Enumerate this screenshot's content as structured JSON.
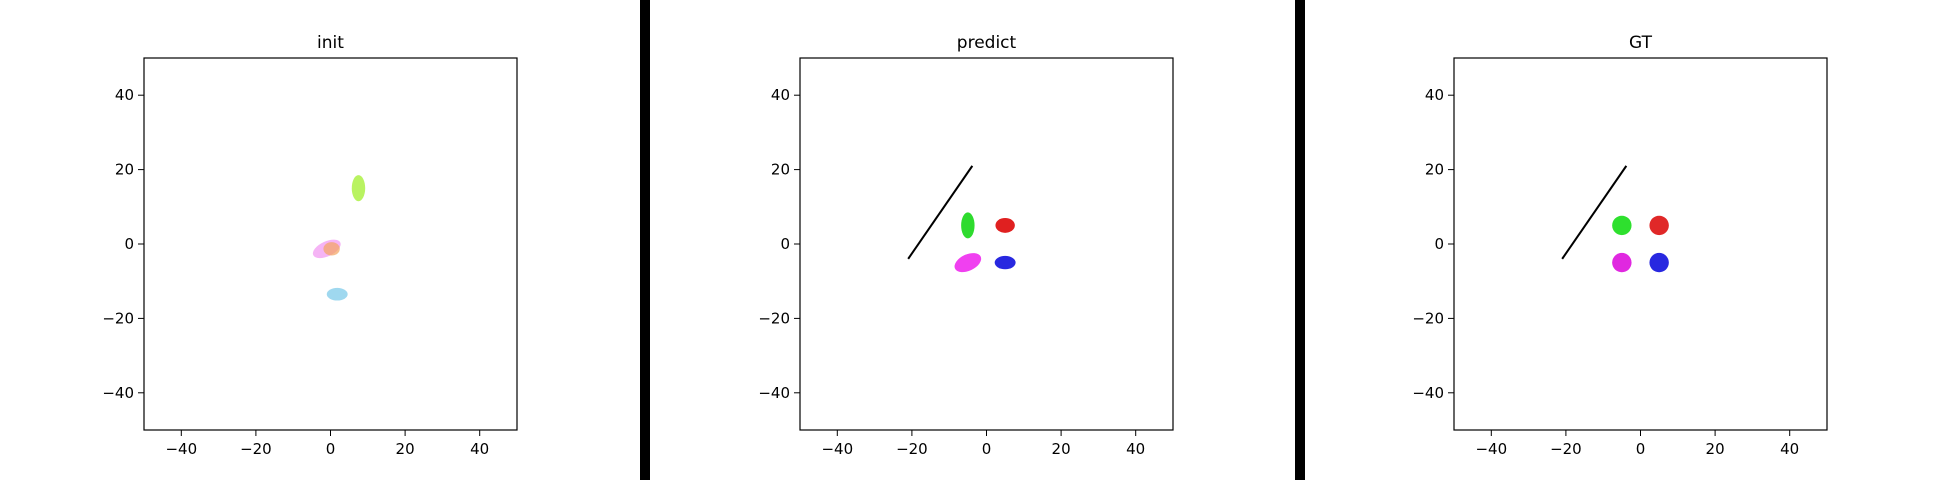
{
  "chart_data": [
    {
      "type": "scatter",
      "title": "init",
      "xlabel": "",
      "ylabel": "",
      "xlim": [
        -50,
        50
      ],
      "ylim": [
        -50,
        50
      ],
      "xticks": [
        -40,
        -20,
        0,
        20,
        40
      ],
      "yticks": [
        -40,
        -20,
        0,
        20,
        40
      ],
      "grid": false,
      "segments": [],
      "ellipses": [
        {
          "cx": 7.5,
          "cy": 15,
          "rx": 1.8,
          "ry": 3.5,
          "angle": 0,
          "color": "#a8f03a",
          "opacity": 0.8
        },
        {
          "cx": -1,
          "cy": -1.3,
          "rx": 4,
          "ry": 2,
          "angle": 25,
          "color": "#ee82ee",
          "opacity": 0.6
        },
        {
          "cx": 0.3,
          "cy": -1.3,
          "rx": 2.2,
          "ry": 1.8,
          "angle": 0,
          "color": "#f4a460",
          "opacity": 0.7
        },
        {
          "cx": 1.8,
          "cy": -13.5,
          "rx": 2.8,
          "ry": 1.7,
          "angle": 0,
          "color": "#87ceeb",
          "opacity": 0.8
        }
      ]
    },
    {
      "type": "scatter",
      "title": "predict",
      "xlabel": "",
      "ylabel": "",
      "xlim": [
        -50,
        50
      ],
      "ylim": [
        -50,
        50
      ],
      "xticks": [
        -40,
        -20,
        0,
        20,
        40
      ],
      "yticks": [
        -40,
        -20,
        0,
        20,
        40
      ],
      "grid": false,
      "segments": [
        {
          "x1": -21,
          "y1": -4,
          "x2": -3.8,
          "y2": 21,
          "color": "#000000"
        }
      ],
      "ellipses": [
        {
          "cx": -5,
          "cy": 5,
          "rx": 1.8,
          "ry": 3.5,
          "angle": 0,
          "color": "#2edb2e",
          "opacity": 1
        },
        {
          "cx": 5,
          "cy": 5,
          "rx": 2.6,
          "ry": 2,
          "angle": 0,
          "color": "#e02020",
          "opacity": 1
        },
        {
          "cx": -5,
          "cy": -5,
          "rx": 3.8,
          "ry": 2.2,
          "angle": 25,
          "color": "#f040f0",
          "opacity": 1
        },
        {
          "cx": 5,
          "cy": -5,
          "rx": 2.8,
          "ry": 1.8,
          "angle": 0,
          "color": "#2828e0",
          "opacity": 1
        }
      ]
    },
    {
      "type": "scatter",
      "title": "GT",
      "xlabel": "",
      "ylabel": "",
      "xlim": [
        -50,
        50
      ],
      "ylim": [
        -50,
        50
      ],
      "xticks": [
        -40,
        -20,
        0,
        20,
        40
      ],
      "yticks": [
        -40,
        -20,
        0,
        20,
        40
      ],
      "grid": false,
      "segments": [
        {
          "x1": -21,
          "y1": -4,
          "x2": -3.8,
          "y2": 21,
          "color": "#000000"
        }
      ],
      "ellipses": [
        {
          "cx": -5,
          "cy": 5,
          "rx": 2.6,
          "ry": 2.6,
          "angle": 0,
          "color": "#2ee02e",
          "opacity": 1
        },
        {
          "cx": 5,
          "cy": 5,
          "rx": 2.6,
          "ry": 2.6,
          "angle": 0,
          "color": "#e02828",
          "opacity": 1
        },
        {
          "cx": -5,
          "cy": -5,
          "rx": 2.6,
          "ry": 2.6,
          "angle": 0,
          "color": "#e028e0",
          "opacity": 1
        },
        {
          "cx": 5,
          "cy": -5,
          "rx": 2.6,
          "ry": 2.6,
          "angle": 0,
          "color": "#2828e0",
          "opacity": 1
        }
      ]
    }
  ]
}
